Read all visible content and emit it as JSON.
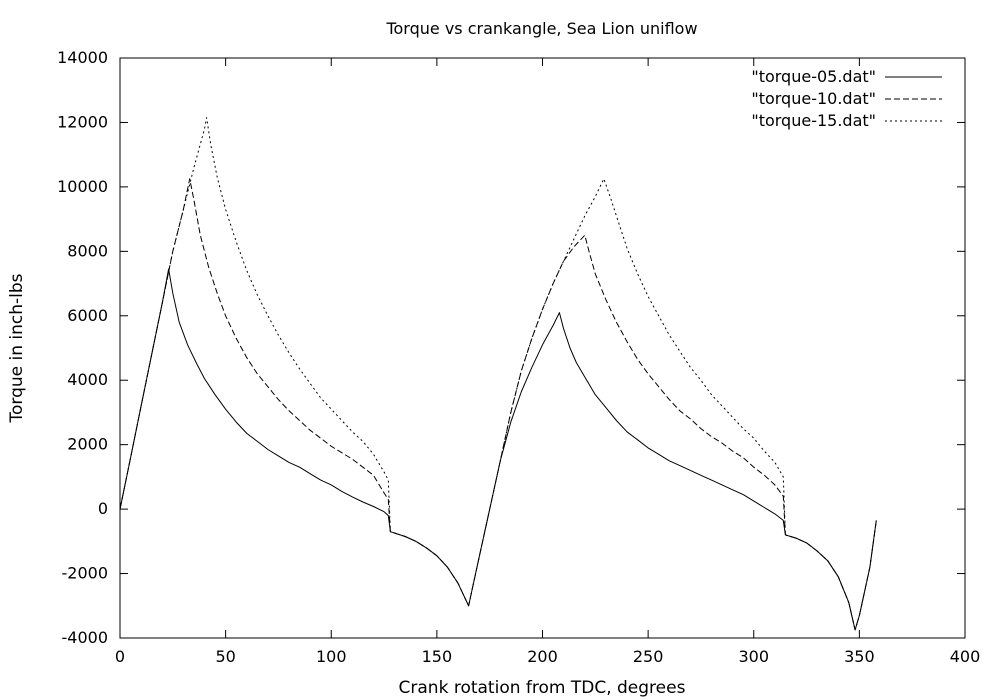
{
  "chart_data": {
    "type": "line",
    "title": "Torque vs crankangle, Sea Lion uniflow",
    "xlabel": "Crank rotation from TDC, degrees",
    "ylabel": "Torque in inch-lbs",
    "xlim": [
      0,
      400
    ],
    "ylim": [
      -4000,
      14000
    ],
    "x_ticks": [
      0,
      50,
      100,
      150,
      200,
      250,
      300,
      350,
      400
    ],
    "y_ticks": [
      -4000,
      -2000,
      0,
      2000,
      4000,
      6000,
      8000,
      10000,
      12000,
      14000
    ],
    "grid": false,
    "legend_position": "top-right",
    "series": [
      {
        "name": "\"torque-05.dat\"",
        "dash": "solid",
        "points": [
          [
            0,
            0
          ],
          [
            5,
            1600
          ],
          [
            10,
            3200
          ],
          [
            15,
            4800
          ],
          [
            20,
            6400
          ],
          [
            23,
            7450
          ],
          [
            25,
            6700
          ],
          [
            28,
            5800
          ],
          [
            32,
            5100
          ],
          [
            36,
            4550
          ],
          [
            40,
            4050
          ],
          [
            45,
            3550
          ],
          [
            50,
            3100
          ],
          [
            55,
            2700
          ],
          [
            60,
            2350
          ],
          [
            65,
            2100
          ],
          [
            70,
            1850
          ],
          [
            75,
            1650
          ],
          [
            80,
            1450
          ],
          [
            85,
            1300
          ],
          [
            90,
            1100
          ],
          [
            95,
            900
          ],
          [
            100,
            750
          ],
          [
            105,
            550
          ],
          [
            110,
            380
          ],
          [
            115,
            220
          ],
          [
            120,
            80
          ],
          [
            125,
            -80
          ],
          [
            127,
            -200
          ],
          [
            128,
            -700
          ],
          [
            135,
            -850
          ],
          [
            140,
            -1000
          ],
          [
            145,
            -1200
          ],
          [
            150,
            -1450
          ],
          [
            155,
            -1800
          ],
          [
            160,
            -2300
          ],
          [
            165,
            -3000
          ],
          [
            170,
            -1500
          ],
          [
            175,
            0
          ],
          [
            180,
            1500
          ],
          [
            185,
            2700
          ],
          [
            190,
            3650
          ],
          [
            195,
            4400
          ],
          [
            200,
            5100
          ],
          [
            205,
            5700
          ],
          [
            208,
            6100
          ],
          [
            210,
            5600
          ],
          [
            213,
            5000
          ],
          [
            216,
            4550
          ],
          [
            220,
            4100
          ],
          [
            225,
            3550
          ],
          [
            230,
            3150
          ],
          [
            235,
            2750
          ],
          [
            240,
            2400
          ],
          [
            245,
            2150
          ],
          [
            250,
            1900
          ],
          [
            255,
            1700
          ],
          [
            260,
            1500
          ],
          [
            265,
            1350
          ],
          [
            270,
            1200
          ],
          [
            275,
            1050
          ],
          [
            280,
            900
          ],
          [
            285,
            750
          ],
          [
            290,
            600
          ],
          [
            295,
            450
          ],
          [
            300,
            250
          ],
          [
            305,
            50
          ],
          [
            310,
            -150
          ],
          [
            314,
            -350
          ],
          [
            315,
            -800
          ],
          [
            320,
            -900
          ],
          [
            325,
            -1050
          ],
          [
            330,
            -1300
          ],
          [
            335,
            -1600
          ],
          [
            340,
            -2100
          ],
          [
            345,
            -2900
          ],
          [
            348,
            -3750
          ],
          [
            350,
            -3300
          ],
          [
            355,
            -1800
          ],
          [
            358,
            -350
          ]
        ]
      },
      {
        "name": "\"torque-10.dat\"",
        "dash": "dashed",
        "points": [
          [
            0,
            0
          ],
          [
            5,
            1600
          ],
          [
            10,
            3200
          ],
          [
            15,
            4800
          ],
          [
            20,
            6400
          ],
          [
            25,
            8000
          ],
          [
            30,
            9300
          ],
          [
            33,
            10250
          ],
          [
            35,
            9600
          ],
          [
            38,
            8500
          ],
          [
            42,
            7500
          ],
          [
            46,
            6700
          ],
          [
            50,
            6000
          ],
          [
            55,
            5300
          ],
          [
            60,
            4700
          ],
          [
            65,
            4200
          ],
          [
            70,
            3800
          ],
          [
            75,
            3400
          ],
          [
            80,
            3050
          ],
          [
            85,
            2750
          ],
          [
            90,
            2450
          ],
          [
            95,
            2200
          ],
          [
            100,
            1950
          ],
          [
            105,
            1750
          ],
          [
            110,
            1550
          ],
          [
            115,
            1300
          ],
          [
            120,
            1050
          ],
          [
            125,
            500
          ],
          [
            127,
            300
          ],
          [
            128,
            -700
          ],
          [
            135,
            -850
          ],
          [
            140,
            -1000
          ],
          [
            145,
            -1200
          ],
          [
            150,
            -1450
          ],
          [
            155,
            -1800
          ],
          [
            160,
            -2300
          ],
          [
            165,
            -3000
          ],
          [
            170,
            -1500
          ],
          [
            175,
            0
          ],
          [
            180,
            1500
          ],
          [
            185,
            3000
          ],
          [
            190,
            4300
          ],
          [
            195,
            5300
          ],
          [
            200,
            6200
          ],
          [
            205,
            7000
          ],
          [
            210,
            7700
          ],
          [
            215,
            8150
          ],
          [
            220,
            8500
          ],
          [
            222,
            8000
          ],
          [
            225,
            7300
          ],
          [
            230,
            6500
          ],
          [
            235,
            5800
          ],
          [
            240,
            5200
          ],
          [
            245,
            4650
          ],
          [
            250,
            4200
          ],
          [
            255,
            3800
          ],
          [
            260,
            3400
          ],
          [
            265,
            3050
          ],
          [
            270,
            2800
          ],
          [
            275,
            2500
          ],
          [
            280,
            2250
          ],
          [
            285,
            2050
          ],
          [
            290,
            1800
          ],
          [
            295,
            1600
          ],
          [
            300,
            1300
          ],
          [
            305,
            1050
          ],
          [
            310,
            750
          ],
          [
            314,
            400
          ],
          [
            315,
            -800
          ],
          [
            320,
            -900
          ],
          [
            325,
            -1050
          ],
          [
            330,
            -1300
          ],
          [
            335,
            -1600
          ],
          [
            340,
            -2100
          ],
          [
            345,
            -2900
          ],
          [
            348,
            -3750
          ],
          [
            350,
            -3300
          ],
          [
            355,
            -1800
          ],
          [
            358,
            -350
          ]
        ]
      },
      {
        "name": "\"torque-15.dat\"",
        "dash": "dotted",
        "points": [
          [
            0,
            0
          ],
          [
            5,
            1600
          ],
          [
            10,
            3200
          ],
          [
            15,
            4800
          ],
          [
            20,
            6400
          ],
          [
            25,
            8000
          ],
          [
            30,
            9300
          ],
          [
            35,
            10600
          ],
          [
            40,
            11800
          ],
          [
            41,
            12150
          ],
          [
            43,
            11300
          ],
          [
            46,
            10300
          ],
          [
            50,
            9300
          ],
          [
            55,
            8300
          ],
          [
            60,
            7400
          ],
          [
            65,
            6650
          ],
          [
            70,
            6000
          ],
          [
            75,
            5400
          ],
          [
            80,
            4850
          ],
          [
            85,
            4350
          ],
          [
            90,
            3900
          ],
          [
            95,
            3450
          ],
          [
            100,
            3100
          ],
          [
            105,
            2750
          ],
          [
            110,
            2400
          ],
          [
            115,
            2100
          ],
          [
            120,
            1700
          ],
          [
            125,
            1150
          ],
          [
            127,
            900
          ],
          [
            128,
            -700
          ],
          [
            135,
            -850
          ],
          [
            140,
            -1000
          ],
          [
            145,
            -1200
          ],
          [
            150,
            -1450
          ],
          [
            155,
            -1800
          ],
          [
            160,
            -2300
          ],
          [
            165,
            -3000
          ],
          [
            170,
            -1500
          ],
          [
            175,
            0
          ],
          [
            180,
            1500
          ],
          [
            185,
            3000
          ],
          [
            190,
            4300
          ],
          [
            195,
            5300
          ],
          [
            200,
            6200
          ],
          [
            205,
            7000
          ],
          [
            210,
            7700
          ],
          [
            215,
            8400
          ],
          [
            220,
            9100
          ],
          [
            225,
            9700
          ],
          [
            229,
            10250
          ],
          [
            232,
            9700
          ],
          [
            236,
            8900
          ],
          [
            240,
            8100
          ],
          [
            245,
            7300
          ],
          [
            250,
            6600
          ],
          [
            255,
            6000
          ],
          [
            260,
            5400
          ],
          [
            265,
            4900
          ],
          [
            270,
            4400
          ],
          [
            275,
            4000
          ],
          [
            280,
            3550
          ],
          [
            285,
            3200
          ],
          [
            290,
            2850
          ],
          [
            295,
            2500
          ],
          [
            300,
            2200
          ],
          [
            305,
            1800
          ],
          [
            310,
            1450
          ],
          [
            314,
            1000
          ],
          [
            315,
            -800
          ],
          [
            320,
            -900
          ],
          [
            325,
            -1050
          ],
          [
            330,
            -1300
          ],
          [
            335,
            -1600
          ],
          [
            340,
            -2100
          ],
          [
            345,
            -2900
          ],
          [
            348,
            -3750
          ],
          [
            350,
            -3300
          ],
          [
            355,
            -1800
          ],
          [
            358,
            -350
          ]
        ]
      }
    ]
  }
}
